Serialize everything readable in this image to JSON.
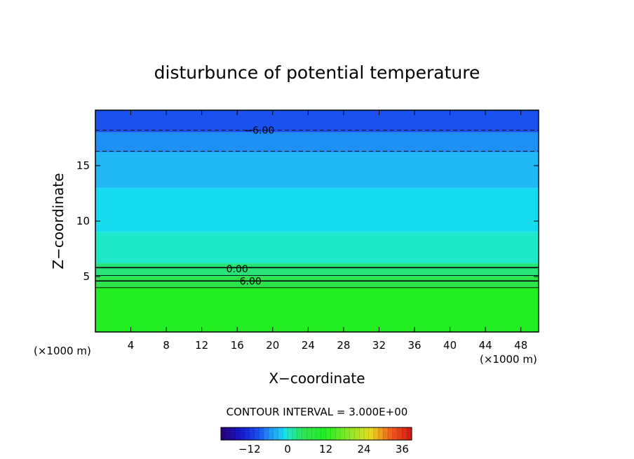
{
  "chart_data": {
    "type": "heatmap",
    "title": "disturbunce of potential temperature",
    "xlabel": "X−coordinate",
    "ylabel": "Z−coordinate",
    "x_unit": "(×1000 m)",
    "y_unit": "(×1000 m)",
    "xlim": [
      0,
      50
    ],
    "ylim": [
      0,
      20
    ],
    "x_ticks": [
      4,
      8,
      12,
      16,
      20,
      24,
      28,
      32,
      36,
      40,
      44,
      48
    ],
    "y_ticks": [
      5,
      10,
      15
    ],
    "contour_interval_text": "CONTOUR INTERVAL = 3.000E+00",
    "contour_labels": [
      {
        "text": "−6.00",
        "x": 18.5,
        "z": 18.2
      },
      {
        "text": "0.00",
        "x": 16.0,
        "z": 5.7
      },
      {
        "text": "6.00",
        "x": 17.5,
        "z": 4.6
      }
    ],
    "contour_levels": [
      {
        "level": -6,
        "z": 18.2,
        "style": "dashed"
      },
      {
        "level": -3,
        "z": 16.3,
        "style": "dashed"
      },
      {
        "level": 0,
        "z": 5.8,
        "style": "solid"
      },
      {
        "level": 3,
        "z": 5.1,
        "style": "solid"
      },
      {
        "level": 6,
        "z": 4.6,
        "style": "solid"
      },
      {
        "level": 9,
        "z": 4.0,
        "style": "solid"
      }
    ],
    "field_bands": [
      {
        "z": [
          18.0,
          20.0
        ],
        "value": -9
      },
      {
        "z": [
          16.2,
          18.0
        ],
        "value": -6
      },
      {
        "z": [
          13.0,
          16.2
        ],
        "value": -3
      },
      {
        "z": [
          9.0,
          13.0
        ],
        "value": -1
      },
      {
        "z": [
          6.2,
          9.0
        ],
        "value": 0
      },
      {
        "z": [
          5.0,
          6.2
        ],
        "value": 3
      },
      {
        "z": [
          4.0,
          5.0
        ],
        "value": 6
      },
      {
        "z": [
          0.0,
          4.0
        ],
        "value": 12
      }
    ],
    "colorbar": {
      "min": -21,
      "max": 39,
      "ticks": [
        "−12",
        "0",
        "12",
        "24",
        "36"
      ],
      "tick_values": [
        -12,
        0,
        12,
        24,
        36
      ]
    },
    "colors": {
      "deep_blue": "#1a52f0",
      "blue": "#1f8ff5",
      "sky": "#22b8f5",
      "cyan": "#17dcf0",
      "aqua": "#1ee8c8",
      "green": "#2de44a",
      "bright_green": "#22ee22"
    }
  }
}
